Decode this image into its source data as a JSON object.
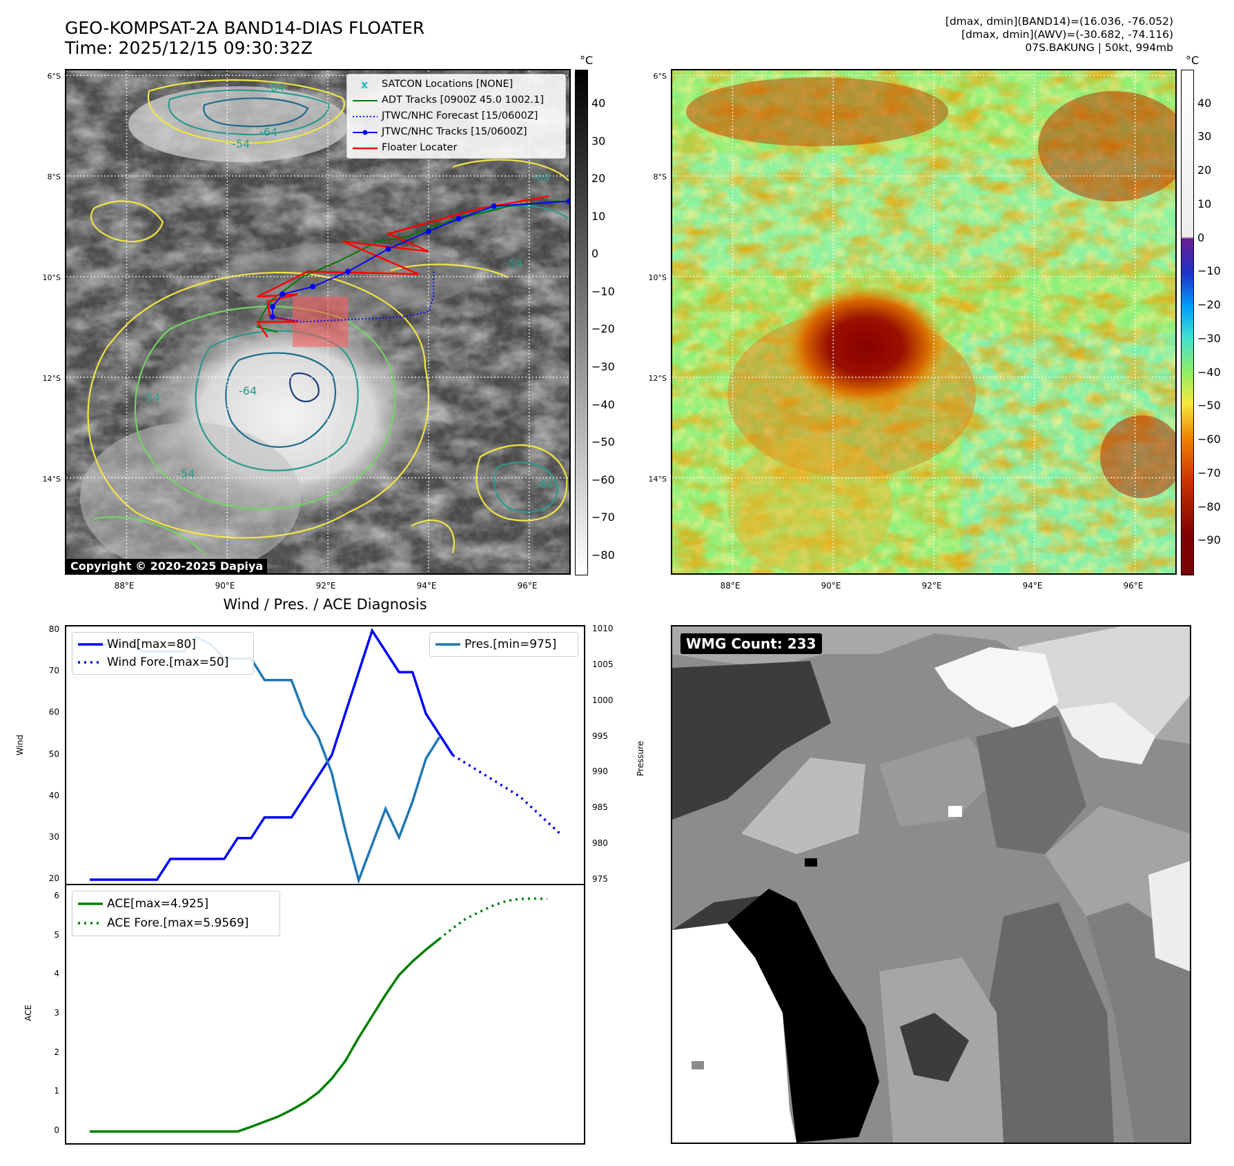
{
  "header": {
    "title_line1": "GEO-KOMPSAT-2A BAND14-DIAS FLOATER",
    "title_line2": "Time: 2025/12/15 09:30:32Z",
    "info_line1": "[dmax, dmin](BAND14)=(16.036, -76.052)",
    "info_line2": "[dmax, dmin](AWV)=(-30.682, -74.116)",
    "info_line3": "07S.BAKUNG | 50kt, 994mb"
  },
  "maps": {
    "lat_labels": [
      "6°S",
      "8°S",
      "10°S",
      "12°S",
      "14°S"
    ],
    "lon_labels": [
      "88°E",
      "90°E",
      "92°E",
      "94°E",
      "96°E"
    ],
    "lon_range": [
      86.8,
      96.8
    ],
    "lat_range": [
      -15.9,
      -5.9
    ],
    "copyright": "Copyright © 2020-2025 Dapiya",
    "contour_labels": [
      "-64",
      "-54",
      "-64",
      "-64",
      "-54",
      "-54",
      "-64",
      "-54",
      "-64"
    ],
    "legend": [
      {
        "label": "SATCON Locations [NONE]",
        "color": "#20b8c8",
        "style": "x"
      },
      {
        "label": "ADT Tracks [0900Z 45.0 1002.1]",
        "color": "#007a00",
        "style": "line"
      },
      {
        "label": "JTWC/NHC Forecast [15/0600Z]",
        "color": "#0000ff",
        "style": "dotted"
      },
      {
        "label": "JTWC/NHC Tracks [15/0600Z]",
        "color": "#0000ff",
        "style": "line-dot"
      },
      {
        "label": "Floater Locater",
        "color": "#ff0000",
        "style": "line"
      }
    ],
    "jtwc_track": [
      [
        96.8,
        -8.5
      ],
      [
        95.3,
        -8.6
      ],
      [
        94.6,
        -8.85
      ],
      [
        94.0,
        -9.1
      ],
      [
        93.2,
        -9.45
      ],
      [
        92.4,
        -9.9
      ],
      [
        91.7,
        -10.2
      ],
      [
        91.1,
        -10.35
      ],
      [
        90.9,
        -10.6
      ],
      [
        90.9,
        -10.8
      ]
    ],
    "jtwc_forecast": [
      [
        90.9,
        -10.8
      ],
      [
        91.5,
        -10.9
      ],
      [
        92.5,
        -10.85
      ],
      [
        93.5,
        -10.8
      ],
      [
        94.0,
        -10.7
      ],
      [
        94.1,
        -10.4
      ],
      [
        94.1,
        -9.9
      ]
    ],
    "floater_box": [
      [
        91.3,
        -10.4
      ],
      [
        92.4,
        -11.4
      ]
    ],
    "floater_track": [
      [
        96.4,
        -8.4
      ],
      [
        95.0,
        -8.65
      ],
      [
        93.2,
        -9.15
      ],
      [
        94.0,
        -9.5
      ],
      [
        92.3,
        -9.3
      ],
      [
        93.8,
        -9.95
      ],
      [
        91.6,
        -9.9
      ],
      [
        90.6,
        -10.4
      ],
      [
        91.4,
        -10.35
      ],
      [
        90.8,
        -10.5
      ],
      [
        90.85,
        -10.8
      ],
      [
        91.4,
        -10.9
      ],
      [
        90.6,
        -10.9
      ],
      [
        90.8,
        -11.2
      ]
    ],
    "adt_track": [
      [
        96.6,
        -8.5
      ],
      [
        95.6,
        -8.6
      ],
      [
        94.4,
        -8.9
      ],
      [
        93.6,
        -9.2
      ],
      [
        93.0,
        -9.3
      ],
      [
        92.2,
        -9.7
      ],
      [
        91.5,
        -10.0
      ],
      [
        90.9,
        -10.45
      ],
      [
        90.7,
        -10.75
      ],
      [
        90.6,
        -11.0
      ],
      [
        91.0,
        -11.1
      ]
    ],
    "left_colorbar": {
      "unit": "°C",
      "ticks": [
        40,
        30,
        20,
        10,
        0,
        -10,
        -20,
        -30,
        -40,
        -50,
        -60,
        -70,
        -80
      ],
      "range": [
        -85,
        49
      ]
    },
    "right_colorbar": {
      "unit": "°C",
      "ticks": [
        40,
        30,
        20,
        10,
        0,
        -10,
        -20,
        -30,
        -40,
        -50,
        -60,
        -70,
        -80,
        -90
      ],
      "range": [
        -100,
        50
      ]
    }
  },
  "diagnosis": {
    "title": "Wind / Pres. / ACE Diagnosis",
    "wind_ylabel": "Wind",
    "pres_ylabel": "Pressure",
    "ace_ylabel": "ACE",
    "legend_wind": "Wind[max=80]",
    "legend_wind_fore": "Wind Fore.[max=50]",
    "legend_pres": "Pres.[min=975]",
    "legend_ace": "ACE[max=4.925]",
    "legend_ace_fore": "ACE Fore.[max=5.9569]",
    "wind_ticks": [
      80,
      70,
      60,
      50,
      40,
      30,
      20
    ],
    "pres_ticks": [
      1010,
      1005,
      1000,
      995,
      990,
      985,
      980,
      975
    ],
    "ace_ticks": [
      6,
      5,
      4,
      3,
      2,
      1,
      0
    ]
  },
  "chart_data": [
    {
      "type": "line",
      "title": "Wind / Pres. / ACE Diagnosis",
      "ylabel": "Wind",
      "y2label": "Pressure",
      "x": [
        0,
        1,
        2,
        3,
        4,
        5,
        6,
        7,
        8,
        9,
        10,
        11,
        12,
        13,
        14,
        15,
        16,
        17,
        18,
        19,
        20,
        21,
        22,
        23,
        24,
        25,
        26,
        27,
        28,
        29,
        30,
        31,
        32,
        33,
        34,
        35
      ],
      "ylim": [
        19,
        81
      ],
      "y2lim": [
        974.5,
        1010.5
      ],
      "series": [
        {
          "name": "Wind[max=80]",
          "axis": "y",
          "color": "#0000ff",
          "style": "solid",
          "values": [
            20,
            20,
            20,
            20,
            20,
            20,
            25,
            25,
            25,
            25,
            25,
            30,
            30,
            35,
            35,
            35,
            40,
            45,
            50,
            60,
            70,
            80,
            75,
            70,
            70,
            60,
            55,
            50,
            null,
            null,
            null,
            null,
            null,
            null,
            null,
            null
          ]
        },
        {
          "name": "Wind Fore.[max=50]",
          "axis": "y",
          "color": "#0000ff",
          "style": "dotted",
          "values": [
            null,
            null,
            null,
            null,
            null,
            null,
            null,
            null,
            null,
            null,
            null,
            null,
            null,
            null,
            null,
            null,
            null,
            null,
            null,
            null,
            null,
            null,
            null,
            null,
            null,
            null,
            null,
            50,
            48,
            46,
            44,
            42,
            40,
            37,
            34,
            31
          ]
        },
        {
          "name": "Pres.[min=975]",
          "axis": "y2",
          "color": "#1f77b4",
          "style": "solid",
          "values": [
            1008,
            1008,
            1008,
            1008,
            1007,
            1007,
            1007,
            1007,
            1009,
            1008,
            1006,
            1006,
            1006,
            1003,
            1003,
            1003,
            998,
            995,
            990,
            982,
            975,
            980,
            985,
            981,
            986,
            992,
            995,
            null,
            null,
            null,
            null,
            null,
            null,
            null,
            null,
            null
          ]
        }
      ]
    },
    {
      "type": "line",
      "ylabel": "ACE",
      "x": [
        0,
        1,
        2,
        3,
        4,
        5,
        6,
        7,
        8,
        9,
        10,
        11,
        12,
        13,
        14,
        15,
        16,
        17,
        18,
        19,
        20,
        21,
        22,
        23,
        24,
        25,
        26,
        27,
        28,
        29,
        30,
        31,
        32,
        33,
        34,
        35
      ],
      "ylim": [
        -0.3,
        6.3
      ],
      "series": [
        {
          "name": "ACE[max=4.925]",
          "color": "#008000",
          "style": "solid",
          "values": [
            0,
            0,
            0,
            0,
            0,
            0,
            0,
            0,
            0,
            0,
            0,
            0,
            0.12,
            0.25,
            0.38,
            0.55,
            0.75,
            1.0,
            1.35,
            1.8,
            2.4,
            2.95,
            3.5,
            4.0,
            4.35,
            4.65,
            4.925,
            null,
            null,
            null,
            null,
            null,
            null,
            null,
            null,
            null
          ]
        },
        {
          "name": "ACE Fore.[max=5.9569]",
          "color": "#008000",
          "style": "dotted",
          "values": [
            null,
            null,
            null,
            null,
            null,
            null,
            null,
            null,
            null,
            null,
            null,
            null,
            null,
            null,
            null,
            null,
            null,
            null,
            null,
            null,
            null,
            null,
            null,
            null,
            null,
            null,
            4.925,
            5.2,
            5.45,
            5.62,
            5.78,
            5.9,
            5.95,
            5.9569,
            5.95,
            null
          ]
        }
      ]
    }
  ],
  "wmg": {
    "count_label": "WMG Count: 233"
  }
}
